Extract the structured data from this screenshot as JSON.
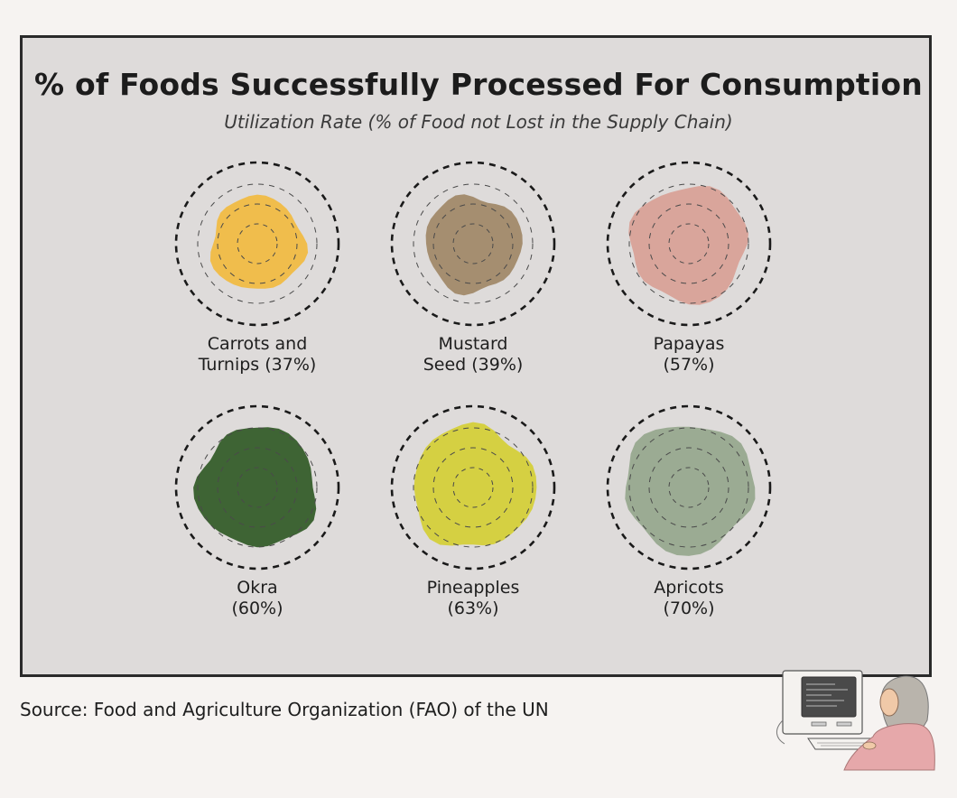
{
  "chart_data": {
    "type": "bubble",
    "title": "% of Foods Successfully Processed For Consumption",
    "subtitle": "Utilization Rate (% of Food not Lost in the Supply Chain)",
    "items": [
      {
        "name": "Carrots and Turnips",
        "label_line1": "Carrots and",
        "label_line2": "Turnips (37%)",
        "value": 37,
        "color": "#f0bd4c"
      },
      {
        "name": "Mustard Seed",
        "label_line1": "Mustard",
        "label_line2": "Seed (39%)",
        "value": 39,
        "color": "#a58e70"
      },
      {
        "name": "Papayas",
        "label_line1": "Papayas",
        "label_line2": "(57%)",
        "value": 57,
        "color": "#d9a59b"
      },
      {
        "name": "Okra",
        "label_line1": "Okra",
        "label_line2": "(60%)",
        "value": 60,
        "color": "#3e6434"
      },
      {
        "name": "Pineapples",
        "label_line1": "Pineapples",
        "label_line2": "(63%)",
        "value": 63,
        "color": "#d5d042"
      },
      {
        "name": "Apricots",
        "label_line1": "Apricots",
        "label_line2": "(70%)",
        "value": 70,
        "color": "#9bab93"
      }
    ]
  },
  "source": "Source: Food and Agriculture Organization (FAO) of the UN",
  "colors": {
    "background": "#f6f3f1",
    "panel": "#dedbda",
    "border": "#2a2a2a"
  }
}
